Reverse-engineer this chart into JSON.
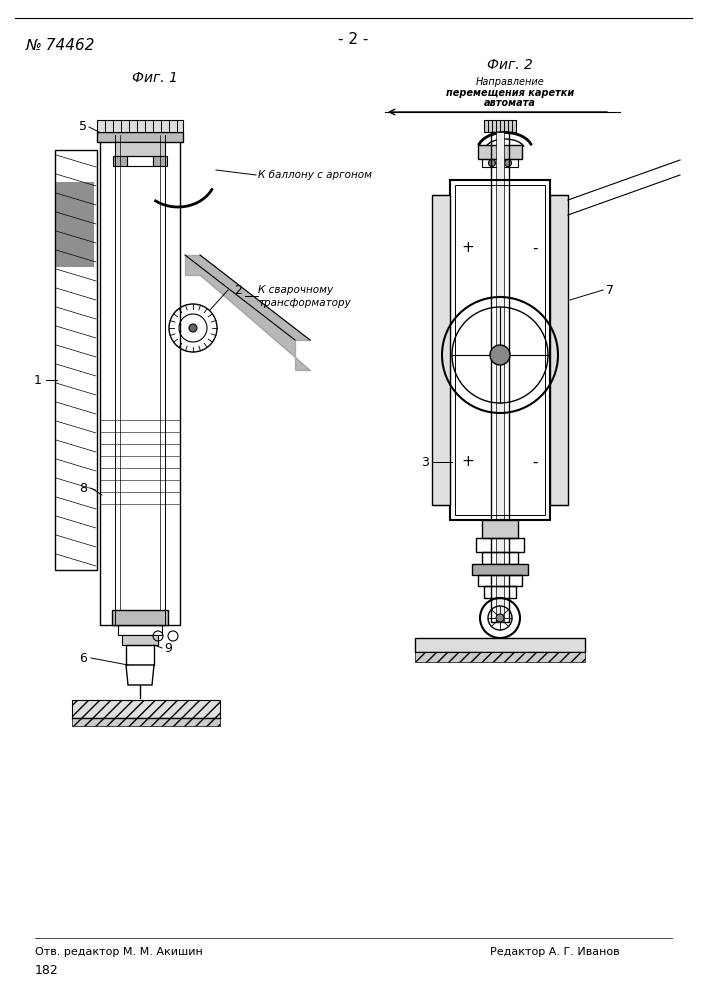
{
  "page_number": "- 2 -",
  "patent_number": "№ 74462",
  "fig1_label": "Фиг. 1",
  "fig2_label": "Фиг. 2",
  "fig2_subtitle_line1": "Направление",
  "fig2_subtitle_line2": "перемещения каретки",
  "fig2_subtitle_line3": "автомата",
  "argon_label": "К баллону с аргоном",
  "transformer_label_1": "К сварочному",
  "transformer_label_2": "трансформатору",
  "bottom_left": "Отв. редактор М. М. Акишин",
  "bottom_right": "Редактор А. Г. Иванов",
  "page_num_bottom": "182",
  "label_1": "1",
  "label_2": "2",
  "label_3": "3",
  "label_5": "5",
  "label_6": "6",
  "label_7": "7",
  "label_8": "8",
  "label_9": "9",
  "bg_color": "#ffffff",
  "line_color": "#000000"
}
